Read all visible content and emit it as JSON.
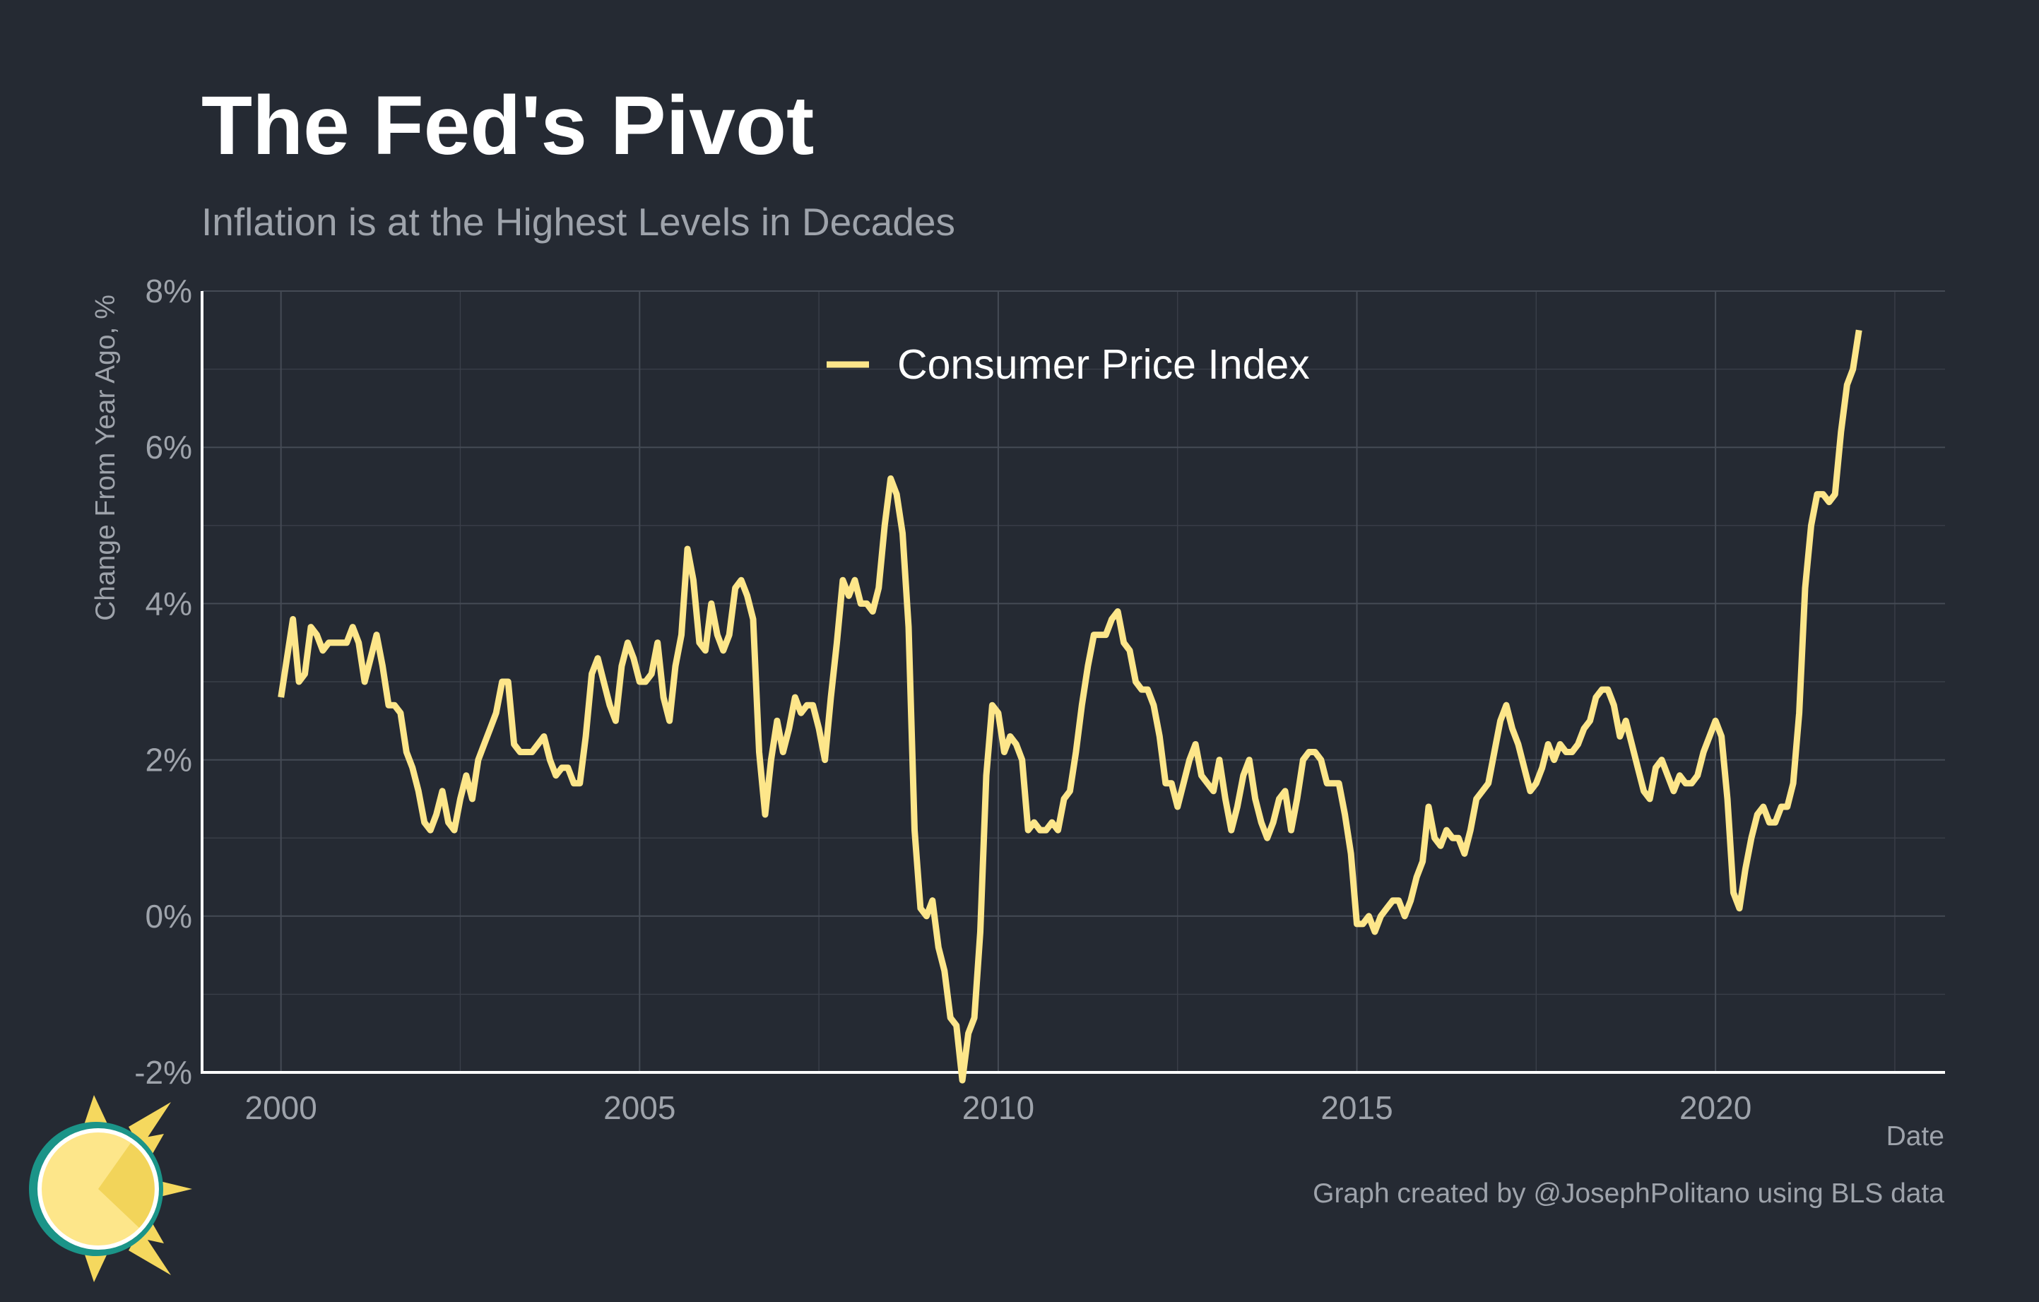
{
  "chart_data": {
    "type": "line",
    "title": "The Fed's Pivot",
    "subtitle": "Inflation is at the Highest Levels in Decades",
    "xlabel": "Date",
    "ylabel": "Change From Year Ago, %",
    "caption": "Graph created by @JosephPolitano using BLS data",
    "xlim": [
      1998.9,
      2023.2
    ],
    "ylim": [
      -2,
      8
    ],
    "x_ticks": [
      {
        "value": 2000,
        "label": "2000"
      },
      {
        "value": 2005,
        "label": "2005"
      },
      {
        "value": 2010,
        "label": "2010"
      },
      {
        "value": 2015,
        "label": "2015"
      },
      {
        "value": 2020,
        "label": "2020"
      }
    ],
    "y_ticks": [
      {
        "value": -2,
        "label": "-2%"
      },
      {
        "value": 0,
        "label": "0%"
      },
      {
        "value": 2,
        "label": "2%"
      },
      {
        "value": 4,
        "label": "4%"
      },
      {
        "value": 6,
        "label": "6%"
      },
      {
        "value": 8,
        "label": "8%"
      }
    ],
    "grid": true,
    "legend_position": "top-center",
    "series": [
      {
        "name": "Consumer Price Index",
        "color": "#fde68a",
        "x": [
          "2000-01",
          "2000-03",
          "2000-04",
          "2000-05",
          "2000-06",
          "2000-07",
          "2000-08",
          "2000-09",
          "2000-10",
          "2000-11",
          "2000-12",
          "2001-01",
          "2001-02",
          "2001-03",
          "2001-04",
          "2001-05",
          "2001-06",
          "2001-07",
          "2001-08",
          "2001-09",
          "2001-10",
          "2001-11",
          "2001-12",
          "2002-01",
          "2002-02",
          "2002-03",
          "2002-04",
          "2002-05",
          "2002-06",
          "2002-07",
          "2002-08",
          "2002-09",
          "2002-10",
          "2002-11",
          "2002-12",
          "2003-01",
          "2003-02",
          "2003-03",
          "2003-04",
          "2003-05",
          "2003-06",
          "2003-07",
          "2003-08",
          "2003-09",
          "2003-10",
          "2003-11",
          "2003-12",
          "2004-01",
          "2004-02",
          "2004-03",
          "2004-04",
          "2004-05",
          "2004-06",
          "2004-07",
          "2004-08",
          "2004-09",
          "2004-10",
          "2004-11",
          "2004-12",
          "2005-01",
          "2005-02",
          "2005-03",
          "2005-04",
          "2005-05",
          "2005-06",
          "2005-07",
          "2005-08",
          "2005-09",
          "2005-10",
          "2005-11",
          "2005-12",
          "2006-01",
          "2006-02",
          "2006-03",
          "2006-04",
          "2006-05",
          "2006-06",
          "2006-07",
          "2006-08",
          "2006-09",
          "2006-10",
          "2006-11",
          "2006-12",
          "2007-01",
          "2007-02",
          "2007-03",
          "2007-04",
          "2007-05",
          "2007-06",
          "2007-07",
          "2007-08",
          "2007-09",
          "2007-10",
          "2007-11",
          "2007-12",
          "2008-01",
          "2008-02",
          "2008-03",
          "2008-04",
          "2008-05",
          "2008-06",
          "2008-07",
          "2008-08",
          "2008-09",
          "2008-10",
          "2008-11",
          "2008-12",
          "2009-01",
          "2009-02",
          "2009-03",
          "2009-04",
          "2009-05",
          "2009-06",
          "2009-07",
          "2009-08",
          "2009-09",
          "2009-10",
          "2009-11",
          "2009-12",
          "2010-01",
          "2010-02",
          "2010-03",
          "2010-04",
          "2010-05",
          "2010-06",
          "2010-07",
          "2010-08",
          "2010-09",
          "2010-10",
          "2010-11",
          "2010-12",
          "2011-01",
          "2011-02",
          "2011-03",
          "2011-04",
          "2011-05",
          "2011-06",
          "2011-07",
          "2011-08",
          "2011-09",
          "2011-10",
          "2011-11",
          "2011-12",
          "2012-01",
          "2012-02",
          "2012-03",
          "2012-04",
          "2012-05",
          "2012-06",
          "2012-07",
          "2012-08",
          "2012-09",
          "2012-10",
          "2012-11",
          "2012-12",
          "2013-01",
          "2013-02",
          "2013-03",
          "2013-04",
          "2013-05",
          "2013-06",
          "2013-07",
          "2013-08",
          "2013-09",
          "2013-10",
          "2013-11",
          "2013-12",
          "2014-01",
          "2014-02",
          "2014-03",
          "2014-04",
          "2014-05",
          "2014-06",
          "2014-07",
          "2014-08",
          "2014-09",
          "2014-10",
          "2014-11",
          "2014-12",
          "2015-01",
          "2015-02",
          "2015-03",
          "2015-04",
          "2015-05",
          "2015-06",
          "2015-07",
          "2015-08",
          "2015-09",
          "2015-10",
          "2015-11",
          "2015-12",
          "2016-01",
          "2016-02",
          "2016-03",
          "2016-04",
          "2016-05",
          "2016-06",
          "2016-07",
          "2016-08",
          "2016-09",
          "2016-10",
          "2016-11",
          "2016-12",
          "2017-01",
          "2017-02",
          "2017-03",
          "2017-04",
          "2017-05",
          "2017-06",
          "2017-07",
          "2017-08",
          "2017-09",
          "2017-10",
          "2017-11",
          "2017-12",
          "2018-01",
          "2018-02",
          "2018-03",
          "2018-04",
          "2018-05",
          "2018-06",
          "2018-07",
          "2018-08",
          "2018-09",
          "2018-10",
          "2018-11",
          "2018-12",
          "2019-01",
          "2019-02",
          "2019-03",
          "2019-04",
          "2019-05",
          "2019-06",
          "2019-07",
          "2019-08",
          "2019-09",
          "2019-10",
          "2019-11",
          "2019-12",
          "2020-01",
          "2020-02",
          "2020-03",
          "2020-04",
          "2020-05",
          "2020-06",
          "2020-07",
          "2020-08",
          "2020-09",
          "2020-10",
          "2020-11",
          "2020-12",
          "2021-01",
          "2021-02",
          "2021-03",
          "2021-04",
          "2021-05",
          "2021-06",
          "2021-07",
          "2021-08",
          "2021-09",
          "2021-10",
          "2021-11",
          "2021-12",
          "2022-01"
        ],
        "values": [
          2.8,
          3.8,
          3.0,
          3.1,
          3.7,
          3.6,
          3.4,
          3.5,
          3.5,
          3.5,
          3.5,
          3.7,
          3.5,
          3.0,
          3.3,
          3.6,
          3.2,
          2.7,
          2.7,
          2.6,
          2.1,
          1.9,
          1.6,
          1.2,
          1.1,
          1.3,
          1.6,
          1.2,
          1.1,
          1.5,
          1.8,
          1.5,
          2.0,
          2.2,
          2.4,
          2.6,
          3.0,
          3.0,
          2.2,
          2.1,
          2.1,
          2.1,
          2.2,
          2.3,
          2.0,
          1.8,
          1.9,
          1.9,
          1.7,
          1.7,
          2.3,
          3.1,
          3.3,
          3.0,
          2.7,
          2.5,
          3.2,
          3.5,
          3.3,
          3.0,
          3.0,
          3.1,
          3.5,
          2.8,
          2.5,
          3.2,
          3.6,
          4.7,
          4.3,
          3.5,
          3.4,
          4.0,
          3.6,
          3.4,
          3.6,
          4.2,
          4.3,
          4.1,
          3.8,
          2.1,
          1.3,
          2.0,
          2.5,
          2.1,
          2.4,
          2.8,
          2.6,
          2.7,
          2.7,
          2.4,
          2.0,
          2.8,
          3.5,
          4.3,
          4.1,
          4.3,
          4.0,
          4.0,
          3.9,
          4.2,
          5.0,
          5.6,
          5.4,
          4.9,
          3.7,
          1.1,
          0.1,
          0.0,
          0.2,
          -0.4,
          -0.7,
          -1.3,
          -1.4,
          -2.1,
          -1.5,
          -1.3,
          -0.2,
          1.8,
          2.7,
          2.6,
          2.1,
          2.3,
          2.2,
          2.0,
          1.1,
          1.2,
          1.1,
          1.1,
          1.2,
          1.1,
          1.5,
          1.6,
          2.1,
          2.7,
          3.2,
          3.6,
          3.6,
          3.6,
          3.8,
          3.9,
          3.5,
          3.4,
          3.0,
          2.9,
          2.9,
          2.7,
          2.3,
          1.7,
          1.7,
          1.4,
          1.7,
          2.0,
          2.2,
          1.8,
          1.7,
          1.6,
          2.0,
          1.5,
          1.1,
          1.4,
          1.8,
          2.0,
          1.5,
          1.2,
          1.0,
          1.2,
          1.5,
          1.6,
          1.1,
          1.5,
          2.0,
          2.1,
          2.1,
          2.0,
          1.7,
          1.7,
          1.7,
          1.3,
          0.8,
          -0.1,
          -0.1,
          0.0,
          -0.2,
          0.0,
          0.1,
          0.2,
          0.2,
          0.0,
          0.2,
          0.5,
          0.7,
          1.4,
          1.0,
          0.9,
          1.1,
          1.0,
          1.0,
          0.8,
          1.1,
          1.5,
          1.6,
          1.7,
          2.1,
          2.5,
          2.7,
          2.4,
          2.2,
          1.9,
          1.6,
          1.7,
          1.9,
          2.2,
          2.0,
          2.2,
          2.1,
          2.1,
          2.2,
          2.4,
          2.5,
          2.8,
          2.9,
          2.9,
          2.7,
          2.3,
          2.5,
          2.2,
          1.9,
          1.6,
          1.5,
          1.9,
          2.0,
          1.8,
          1.6,
          1.8,
          1.7,
          1.7,
          1.8,
          2.1,
          2.3,
          2.5,
          2.3,
          1.5,
          0.3,
          0.1,
          0.6,
          1.0,
          1.3,
          1.4,
          1.2,
          1.2,
          1.4,
          1.4,
          1.7,
          2.6,
          4.2,
          5.0,
          5.4,
          5.4,
          5.3,
          5.4,
          6.2,
          6.8,
          7.0,
          7.5
        ]
      }
    ]
  }
}
